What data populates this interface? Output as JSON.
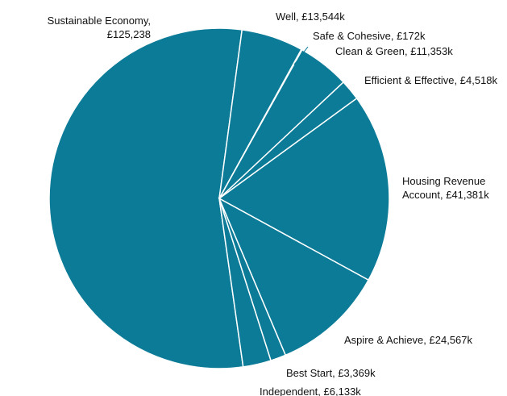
{
  "chart_data": {
    "type": "pie",
    "categories": [
      "Well,",
      "Safe & Cohesive,",
      "Clean & Green,",
      "Efficient & Effective,",
      "Housing Revenue Account,",
      "Aspire & Achieve,",
      "Best Start,",
      "Independent,",
      "Sustainable Economy,"
    ],
    "values": [
      13544,
      172,
      11353,
      4518,
      41381,
      24567,
      3369,
      6133,
      125238
    ],
    "value_labels": [
      "£13,544k",
      "£172k",
      "£11,353k",
      "£4,518k",
      "£41,381k",
      "£24,567k",
      "£3,369k",
      "£6,133k",
      "£125,238"
    ],
    "color": "#0b7b97"
  }
}
